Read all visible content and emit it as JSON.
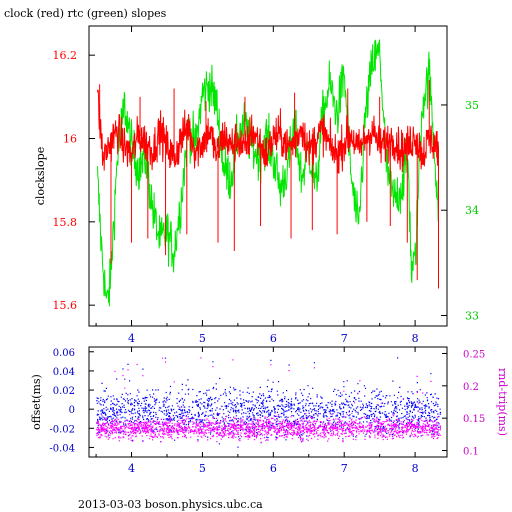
{
  "title": "clock (red) rtc (green) slopes",
  "footer": "2013-03-03 boson.physics.ubc.ca",
  "colors": {
    "clock": "#ff0000",
    "rtc": "#00e600",
    "offset": "#0000ff",
    "rndtrip": "#ff00ff",
    "axis_left_ticks": "#ff0000",
    "axis_right_ticks": "#00cc00",
    "axis_x_ticks": "#0000cc",
    "lower_left_ticks": "#0000cc",
    "lower_right_ticks": "#cc00cc"
  },
  "chart_data": [
    {
      "type": "line",
      "panel": "upper",
      "title": "clock (red) rtc (green) slopes",
      "ylabel": "clockslope",
      "xlim": [
        3.4,
        8.45
      ],
      "ylim": [
        15.55,
        16.27
      ],
      "y2lim": [
        32.9,
        35.75
      ],
      "xticks": [
        "4",
        "5",
        "6",
        "7",
        "8"
      ],
      "yticks": [
        "15.6",
        "15.8",
        "16",
        "16.2"
      ],
      "y2ticks": [
        "33",
        "34",
        "35"
      ],
      "grid": false,
      "series": [
        {
          "name": "clock",
          "axis": "left",
          "x": [
            3.52,
            3.6,
            3.7,
            3.8,
            3.9,
            4.0,
            4.1,
            4.2,
            4.3,
            4.4,
            4.5,
            4.6,
            4.7,
            4.8,
            4.9,
            5.0,
            5.1,
            5.2,
            5.3,
            5.4,
            5.5,
            5.6,
            5.7,
            5.8,
            5.9,
            6.0,
            6.1,
            6.2,
            6.3,
            6.4,
            6.5,
            6.6,
            6.7,
            6.8,
            6.9,
            7.0,
            7.1,
            7.2,
            7.3,
            7.4,
            7.5,
            7.6,
            7.7,
            7.8,
            7.9,
            8.0,
            8.1,
            8.2,
            8.33
          ],
          "y": [
            16.1,
            15.95,
            15.99,
            16.02,
            15.98,
            15.96,
            16.01,
            15.99,
            15.97,
            16.02,
            15.98,
            15.95,
            16.0,
            16.03,
            15.97,
            15.99,
            16.02,
            15.96,
            16.01,
            15.98,
            16.0,
            15.97,
            16.02,
            15.99,
            15.96,
            16.0,
            16.01,
            15.98,
            15.99,
            16.03,
            15.97,
            16.0,
            16.02,
            15.98,
            15.96,
            15.99,
            16.01,
            15.97,
            16.0,
            16.02,
            15.98,
            15.99,
            16.0,
            15.97,
            15.98,
            16.01,
            15.96,
            16.0,
            15.98
          ],
          "spikes": [
            [
              3.71,
              15.7
            ],
            [
              4.0,
              15.75
            ],
            [
              4.23,
              15.76
            ],
            [
              4.48,
              15.72
            ],
            [
              4.78,
              15.77
            ],
            [
              5.22,
              15.75
            ],
            [
              5.45,
              15.73
            ],
            [
              5.82,
              15.79
            ],
            [
              6.25,
              15.76
            ],
            [
              6.55,
              15.78
            ],
            [
              6.9,
              15.77
            ],
            [
              7.32,
              15.8
            ],
            [
              7.65,
              15.79
            ],
            [
              7.89,
              15.75
            ],
            [
              8.03,
              15.66
            ],
            [
              8.33,
              15.64
            ],
            [
              3.55,
              16.13
            ],
            [
              4.12,
              16.1
            ],
            [
              4.6,
              16.12
            ],
            [
              5.05,
              16.09
            ],
            [
              5.6,
              16.1
            ],
            [
              6.3,
              16.11
            ],
            [
              7.05,
              16.12
            ],
            [
              7.5,
              16.1
            ],
            [
              8.2,
              16.14
            ]
          ]
        },
        {
          "name": "rtc",
          "axis": "right",
          "x": [
            3.52,
            3.58,
            3.65,
            3.7,
            3.8,
            3.9,
            4.0,
            4.1,
            4.2,
            4.3,
            4.4,
            4.5,
            4.6,
            4.7,
            4.8,
            4.9,
            5.0,
            5.1,
            5.2,
            5.3,
            5.4,
            5.5,
            5.6,
            5.7,
            5.8,
            5.9,
            6.0,
            6.1,
            6.2,
            6.3,
            6.4,
            6.5,
            6.6,
            6.7,
            6.8,
            6.9,
            6.95,
            7.0,
            7.1,
            7.2,
            7.3,
            7.4,
            7.5,
            7.6,
            7.7,
            7.8,
            7.9,
            7.95,
            8.0,
            8.1,
            8.2,
            8.33
          ],
          "y": [
            34.3,
            33.6,
            33.1,
            33.3,
            34.5,
            35.0,
            34.6,
            34.4,
            34.5,
            34.0,
            33.7,
            33.8,
            33.6,
            34.1,
            34.8,
            34.6,
            35.1,
            35.2,
            35.0,
            34.4,
            34.3,
            34.7,
            34.8,
            34.6,
            34.5,
            34.7,
            34.5,
            34.2,
            34.4,
            34.8,
            34.3,
            34.6,
            34.2,
            34.9,
            35.2,
            34.9,
            35.1,
            35.3,
            34.3,
            33.8,
            34.9,
            35.4,
            35.5,
            34.4,
            34.1,
            34.2,
            34.5,
            33.4,
            33.5,
            35.0,
            35.3,
            34.0
          ]
        }
      ]
    },
    {
      "type": "scatter",
      "panel": "lower",
      "ylabel": "offset(ms)",
      "y2label": "rnd-trip(ms)",
      "xlim": [
        3.4,
        8.45
      ],
      "ylim": [
        -0.05,
        0.065
      ],
      "y2lim": [
        0.09,
        0.26
      ],
      "xticks": [
        "4",
        "5",
        "6",
        "7",
        "8"
      ],
      "yticks": [
        "0.06",
        "0.04",
        "0.02",
        "0",
        "-0.02",
        "-0.04"
      ],
      "y2ticks": [
        "0.25",
        "0.2",
        "0.15",
        "0.1"
      ],
      "grid": false,
      "series": [
        {
          "name": "offset",
          "axis": "left",
          "center": -0.002,
          "spread": 0.022,
          "x_start": 3.5,
          "x_end": 8.35
        },
        {
          "name": "rnd-trip",
          "axis": "right",
          "center": 0.135,
          "spread": 0.02,
          "x_start": 3.5,
          "x_end": 8.35
        }
      ]
    }
  ]
}
